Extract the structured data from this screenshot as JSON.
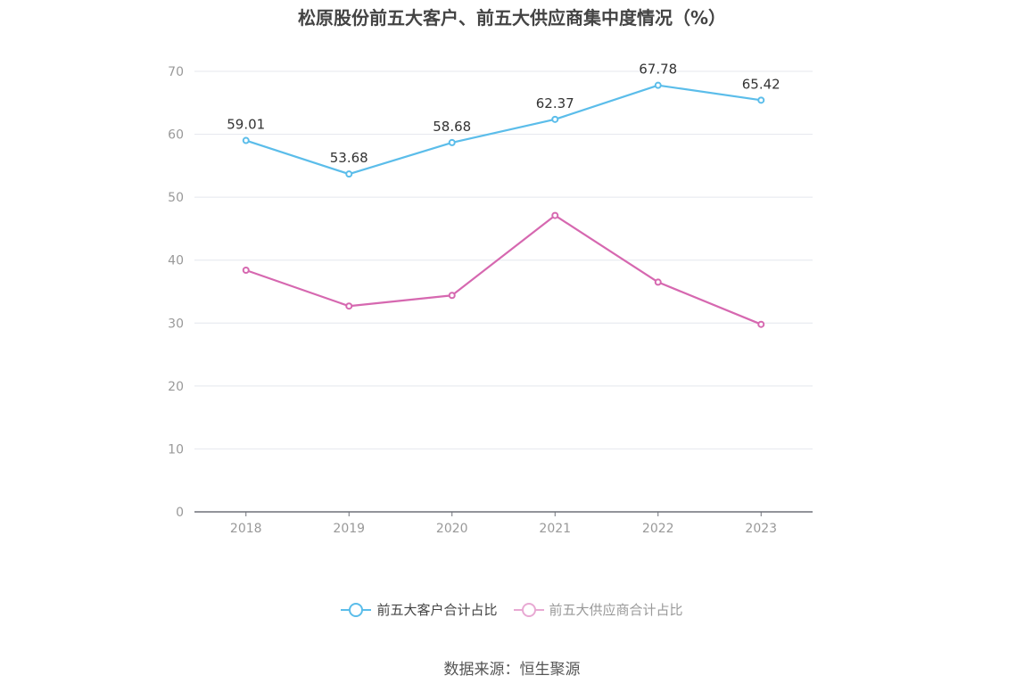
{
  "title": "松原股份前五大客户、前五大供应商集中度情况（%）",
  "source": "数据来源：恒生聚源",
  "colors": {
    "axis": "#999999",
    "grid": "#e4e7ee",
    "label": "#333333"
  },
  "chart_data": {
    "type": "line",
    "title": "松原股份前五大客户、前五大供应商集中度情况（%）",
    "xlabel": "",
    "ylabel": "",
    "categories": [
      "2018",
      "2019",
      "2020",
      "2021",
      "2022",
      "2023"
    ],
    "ylim": [
      0,
      70
    ],
    "yticks": [
      0,
      10,
      20,
      30,
      40,
      50,
      60,
      70
    ],
    "grid": true,
    "legend_position": "bottom",
    "series": [
      {
        "name": "前五大客户合计占比",
        "color": "#5bbdea",
        "values": [
          59.01,
          53.68,
          58.68,
          62.37,
          67.78,
          65.42
        ],
        "show_labels": true
      },
      {
        "name": "前五大供应商合计占比",
        "color": "#d668b0",
        "values": [
          38.4,
          32.7,
          34.4,
          47.1,
          36.5,
          29.8
        ],
        "show_labels": false
      }
    ]
  }
}
